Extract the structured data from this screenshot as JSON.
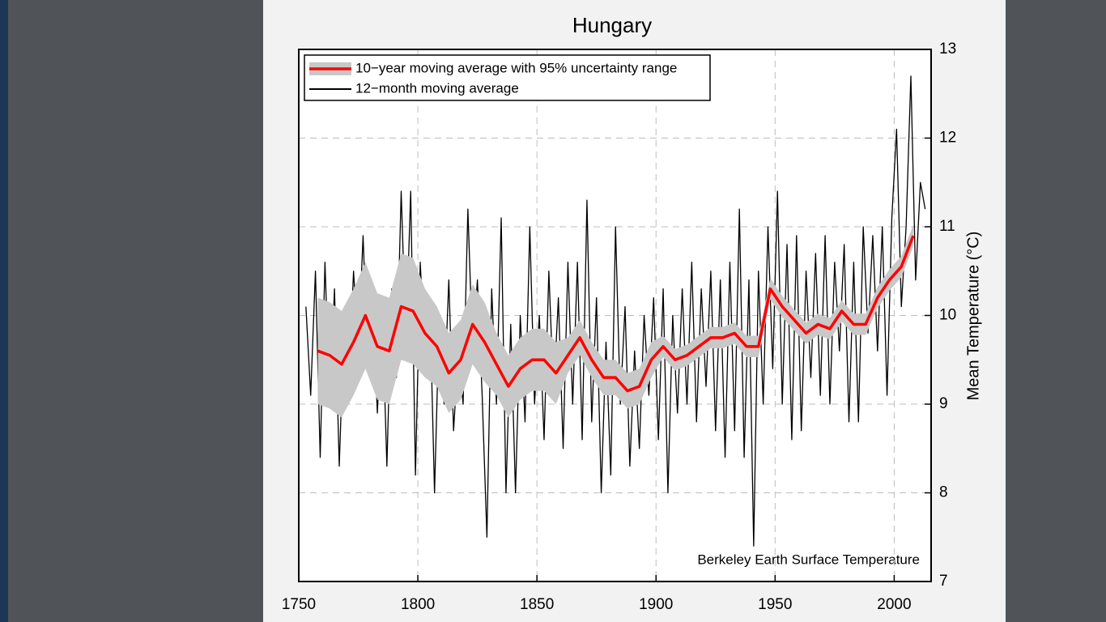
{
  "chart_data": {
    "type": "line",
    "title": "Hungary",
    "ylabel": "Mean Temperature (°C)",
    "annotation": "Berkeley Earth Surface Temperature",
    "xlim": [
      1750,
      2015.5
    ],
    "xticks": [
      1750,
      1800,
      1850,
      1900,
      1950,
      2000
    ],
    "ylim": [
      7,
      13
    ],
    "yticks": [
      7,
      8,
      9,
      10,
      11,
      12,
      13
    ],
    "grid": true,
    "legend": "upper left",
    "series": [
      {
        "name": "10−year moving average with 95% uncertainty range",
        "color": "#ff0000",
        "band_color": "#c8c8c8",
        "x": [
          1758,
          1763,
          1768,
          1773,
          1778,
          1783,
          1788,
          1793,
          1798,
          1803,
          1808,
          1813,
          1818,
          1823,
          1828,
          1833,
          1838,
          1843,
          1848,
          1853,
          1858,
          1863,
          1868,
          1873,
          1878,
          1883,
          1888,
          1893,
          1898,
          1903,
          1908,
          1913,
          1918,
          1923,
          1928,
          1933,
          1938,
          1943,
          1948,
          1953,
          1958,
          1963,
          1968,
          1973,
          1978,
          1983,
          1988,
          1993,
          1998,
          2003,
          2008
        ],
        "values": [
          9.6,
          9.55,
          9.45,
          9.7,
          10.0,
          9.65,
          9.6,
          10.1,
          10.05,
          9.8,
          9.65,
          9.35,
          9.5,
          9.9,
          9.7,
          9.45,
          9.2,
          9.4,
          9.5,
          9.5,
          9.35,
          9.55,
          9.75,
          9.5,
          9.3,
          9.3,
          9.15,
          9.2,
          9.5,
          9.65,
          9.5,
          9.55,
          9.65,
          9.75,
          9.75,
          9.8,
          9.65,
          9.65,
          10.3,
          10.1,
          9.95,
          9.8,
          9.9,
          9.85,
          10.05,
          9.9,
          9.9,
          10.2,
          10.4,
          10.55,
          10.9
        ],
        "uncertainty": [
          0.6,
          0.6,
          0.6,
          0.6,
          0.6,
          0.6,
          0.6,
          0.6,
          0.6,
          0.5,
          0.45,
          0.45,
          0.45,
          0.45,
          0.45,
          0.35,
          0.35,
          0.35,
          0.35,
          0.35,
          0.35,
          0.2,
          0.2,
          0.2,
          0.2,
          0.2,
          0.2,
          0.2,
          0.2,
          0.12,
          0.12,
          0.12,
          0.12,
          0.12,
          0.12,
          0.12,
          0.12,
          0.12,
          0.12,
          0.12,
          0.12,
          0.12,
          0.12,
          0.12,
          0.12,
          0.12,
          0.12,
          0.12,
          0.12,
          0.12,
          0.12
        ]
      },
      {
        "name": "12−month moving average",
        "color": "#000000",
        "x": [
          1753,
          1755,
          1757,
          1759,
          1761,
          1763,
          1765,
          1767,
          1769,
          1771,
          1773,
          1775,
          1777,
          1779,
          1781,
          1783,
          1785,
          1787,
          1789,
          1791,
          1793,
          1795,
          1797,
          1799,
          1801,
          1803,
          1805,
          1807,
          1809,
          1811,
          1813,
          1815,
          1817,
          1819,
          1821,
          1823,
          1825,
          1827,
          1829,
          1831,
          1833,
          1835,
          1837,
          1839,
          1841,
          1843,
          1845,
          1847,
          1849,
          1851,
          1853,
          1855,
          1857,
          1859,
          1861,
          1863,
          1865,
          1867,
          1869,
          1871,
          1873,
          1875,
          1877,
          1879,
          1881,
          1883,
          1885,
          1887,
          1889,
          1891,
          1893,
          1895,
          1897,
          1899,
          1901,
          1903,
          1905,
          1907,
          1909,
          1911,
          1913,
          1915,
          1917,
          1919,
          1921,
          1923,
          1925,
          1927,
          1929,
          1931,
          1933,
          1935,
          1937,
          1939,
          1941,
          1943,
          1945,
          1947,
          1949,
          1951,
          1953,
          1955,
          1957,
          1959,
          1961,
          1963,
          1965,
          1967,
          1969,
          1971,
          1973,
          1975,
          1977,
          1979,
          1981,
          1983,
          1985,
          1987,
          1989,
          1991,
          1993,
          1995,
          1997,
          1999,
          2001,
          2003,
          2005,
          2007,
          2009,
          2011,
          2013
        ],
        "values": [
          10.1,
          9.1,
          10.5,
          8.4,
          10.6,
          9.0,
          10.3,
          8.3,
          9.9,
          9.2,
          10.5,
          9.6,
          10.9,
          9.4,
          10.2,
          8.9,
          10.1,
          8.3,
          10.3,
          9.3,
          11.4,
          9.7,
          11.4,
          8.2,
          10.6,
          9.5,
          10.2,
          8.0,
          10.0,
          9.0,
          10.4,
          8.7,
          9.6,
          9.0,
          11.2,
          9.6,
          10.4,
          9.1,
          7.5,
          10.3,
          9.0,
          11.1,
          8.0,
          9.9,
          8.0,
          10.0,
          8.8,
          11.0,
          9.0,
          10.0,
          8.6,
          10.5,
          9.1,
          10.2,
          8.5,
          10.6,
          9.0,
          10.6,
          8.6,
          11.3,
          8.8,
          10.2,
          8.0,
          9.7,
          8.2,
          11.0,
          9.0,
          10.1,
          8.3,
          9.6,
          8.5,
          10.0,
          9.1,
          10.2,
          8.6,
          10.3,
          8.0,
          10.0,
          8.9,
          10.3,
          9.0,
          10.6,
          8.8,
          10.3,
          9.2,
          10.5,
          8.7,
          10.4,
          8.4,
          10.6,
          8.7,
          11.2,
          8.4,
          10.4,
          7.4,
          10.5,
          9.0,
          11.0,
          9.4,
          11.4,
          9.0,
          10.8,
          8.6,
          10.9,
          8.7,
          10.5,
          9.3,
          10.7,
          9.1,
          10.9,
          9.0,
          10.6,
          9.6,
          10.8,
          8.8,
          10.6,
          8.8,
          11.0,
          9.8,
          10.9,
          9.6,
          11.0,
          9.1,
          11.1,
          12.1,
          10.1,
          11.0,
          12.7,
          10.4,
          11.5,
          11.2
        ]
      }
    ]
  }
}
